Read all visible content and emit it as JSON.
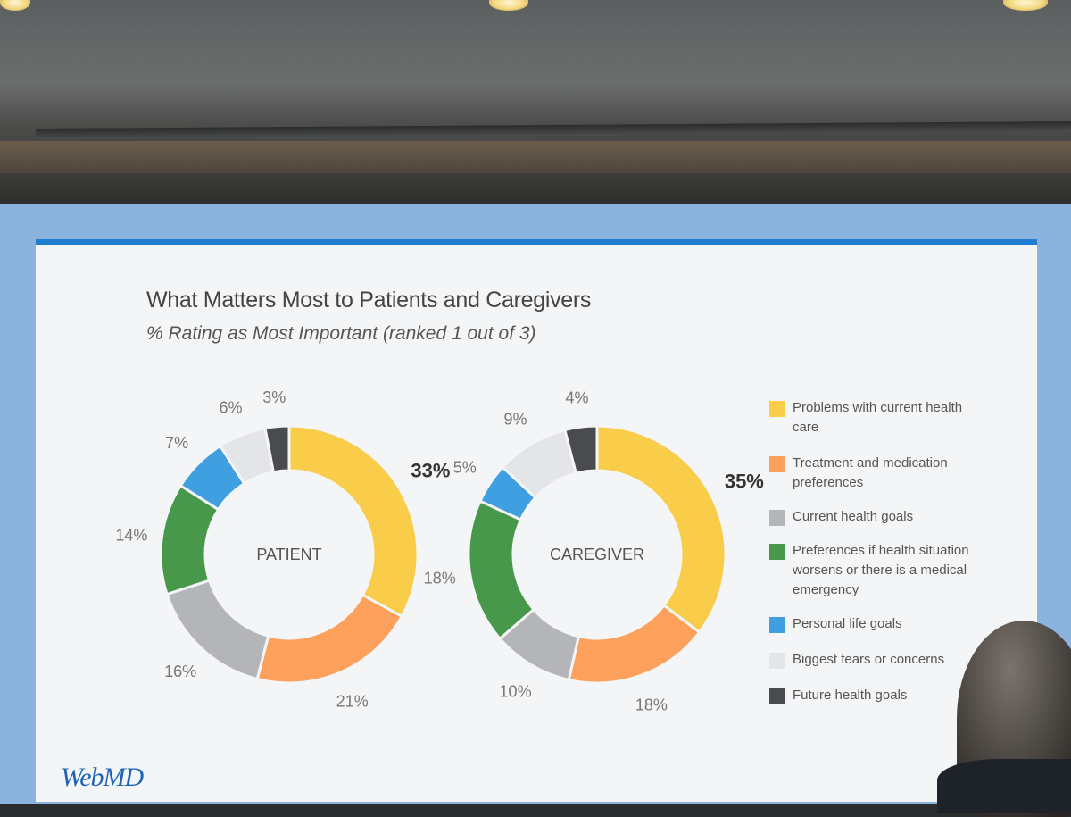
{
  "slide": {
    "title": "What Matters Most to Patients and Caregivers",
    "subtitle": "% Rating as Most Important (ranked 1 out of 3)",
    "logo": "WebMD"
  },
  "chart_data": [
    {
      "type": "pie",
      "center_label": "PATIENT",
      "slices": [
        {
          "category": "Problems with current health care",
          "value": 33,
          "label": "33%"
        },
        {
          "category": "Treatment and medication preferences",
          "value": 21,
          "label": "21%"
        },
        {
          "category": "Current health goals",
          "value": 16,
          "label": "16%"
        },
        {
          "category": "Preferences if health situation worsens or there is a medical emergency",
          "value": 14,
          "label": "14%"
        },
        {
          "category": "Personal life goals",
          "value": 7,
          "label": "7%"
        },
        {
          "category": "Biggest fears or concerns",
          "value": 6,
          "label": "6%"
        },
        {
          "category": "Future health goals",
          "value": 3,
          "label": "3%"
        }
      ]
    },
    {
      "type": "pie",
      "center_label": "CAREGIVER",
      "slices": [
        {
          "category": "Problems with current health care",
          "value": 35,
          "label": "35%"
        },
        {
          "category": "Treatment and medication preferences",
          "value": 18,
          "label": "18%"
        },
        {
          "category": "Current health goals",
          "value": 10,
          "label": "10%"
        },
        {
          "category": "Preferences if health situation worsens or there is a medical emergency",
          "value": 18,
          "label": "18%"
        },
        {
          "category": "Personal life goals",
          "value": 5,
          "label": "5%"
        },
        {
          "category": "Biggest fears or concerns",
          "value": 9,
          "label": "9%"
        },
        {
          "category": "Future health goals",
          "value": 4,
          "label": "4%"
        }
      ]
    }
  ],
  "legend": [
    {
      "label": "Problems with current health care",
      "color": "#f9cd4a"
    },
    {
      "label": "Treatment and medication preferences",
      "color": "#fca05c"
    },
    {
      "label": "Current health goals",
      "color": "#b4b5b9"
    },
    {
      "label": "Preferences if health situation worsens or there is a medical emergency",
      "color": "#47984a"
    },
    {
      "label": "Personal life goals",
      "color": "#3f9fe0"
    },
    {
      "label": "Biggest fears or concerns",
      "color": "#e4e5e8"
    },
    {
      "label": "Future health goals",
      "color": "#4a4b4e"
    }
  ]
}
